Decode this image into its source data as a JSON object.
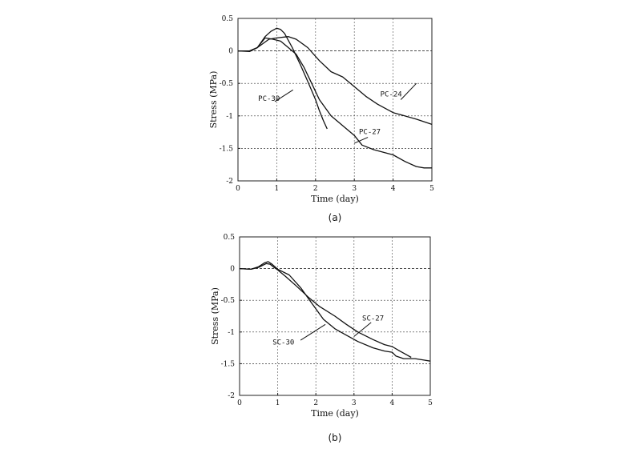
{
  "chart_data": [
    {
      "type": "line",
      "caption": "(a)",
      "xlabel": "Time (day)",
      "ylabel": "Stress (MPa)",
      "xlim": [
        0,
        5
      ],
      "ylim": [
        -2,
        0.5
      ],
      "xticks": [
        "0",
        "1",
        "2",
        "3",
        "4",
        "5"
      ],
      "yticks": [
        "0.5",
        "0",
        "-0.5",
        "-1",
        "-1.5",
        "-2"
      ],
      "grid": true,
      "series": [
        {
          "name": "PC-30",
          "x": [
            0,
            0.3,
            0.5,
            0.7,
            0.85,
            1.0,
            1.1,
            1.2,
            1.4,
            1.6,
            1.8,
            2.0,
            2.1,
            2.2,
            2.3
          ],
          "y": [
            0,
            -0.01,
            0.05,
            0.22,
            0.3,
            0.35,
            0.33,
            0.27,
            0.05,
            -0.2,
            -0.47,
            -0.75,
            -0.92,
            -1.07,
            -1.2
          ]
        },
        {
          "name": "PC-24",
          "x": [
            0,
            0.3,
            0.5,
            0.8,
            1.0,
            1.3,
            1.5,
            1.8,
            2.1,
            2.4,
            2.7,
            3.0,
            3.3,
            3.6,
            4.0,
            4.3,
            4.6,
            5.0
          ],
          "y": [
            0,
            0,
            0.05,
            0.18,
            0.2,
            0.22,
            0.18,
            0.05,
            -0.15,
            -0.32,
            -0.4,
            -0.55,
            -0.7,
            -0.82,
            -0.95,
            -1.0,
            -1.05,
            -1.13
          ]
        },
        {
          "name": "PC-27",
          "x": [
            0,
            0.3,
            0.5,
            0.7,
            0.9,
            1.1,
            1.3,
            1.5,
            1.7,
            1.9,
            2.1,
            2.4,
            2.7,
            3.0,
            3.2,
            3.5,
            4.0,
            4.3,
            4.6,
            4.8,
            5.0
          ],
          "y": [
            0,
            0,
            0.05,
            0.2,
            0.18,
            0.15,
            0.05,
            -0.05,
            -0.25,
            -0.5,
            -0.75,
            -1.0,
            -1.15,
            -1.3,
            -1.45,
            -1.52,
            -1.6,
            -1.7,
            -1.78,
            -1.8,
            -1.8
          ]
        }
      ],
      "labels": [
        {
          "text": "PC-30",
          "x": 0.8,
          "y": -0.77
        },
        {
          "text": "PC-24",
          "x": 3.95,
          "y": -0.7
        },
        {
          "text": "PC-27",
          "x": 3.4,
          "y": -1.28
        }
      ]
    },
    {
      "type": "line",
      "caption": "(b)",
      "xlabel": "Time (day)",
      "ylabel": "Stress (MPa)",
      "xlim": [
        0,
        5
      ],
      "ylim": [
        -2,
        0.5
      ],
      "xticks": [
        "0",
        "1",
        "2",
        "3",
        "4",
        "5"
      ],
      "yticks": [
        "0.5",
        "0",
        "-0.5",
        "-1",
        "-1.5",
        "-2"
      ],
      "grid": true,
      "series": [
        {
          "name": "SC-27",
          "x": [
            0,
            0.3,
            0.5,
            0.7,
            0.8,
            0.9,
            1.0,
            1.2,
            1.5,
            1.8,
            2.1,
            2.5,
            2.8,
            3.1,
            3.5,
            3.8,
            4.0,
            4.2,
            4.5
          ],
          "y": [
            0,
            -0.01,
            0.02,
            0.08,
            0.07,
            0.02,
            -0.02,
            -0.12,
            -0.28,
            -0.45,
            -0.6,
            -0.75,
            -0.88,
            -1.0,
            -1.12,
            -1.2,
            -1.23,
            -1.3,
            -1.4
          ]
        },
        {
          "name": "SC-30",
          "x": [
            0,
            0.3,
            0.5,
            0.65,
            0.75,
            0.85,
            1.0,
            1.3,
            1.6,
            1.9,
            2.2,
            2.5,
            2.8,
            3.1,
            3.5,
            3.8,
            4.0,
            4.1,
            4.3,
            4.6,
            4.8,
            5.0
          ],
          "y": [
            0,
            -0.01,
            0.03,
            0.09,
            0.11,
            0.07,
            -0.01,
            -0.1,
            -0.3,
            -0.55,
            -0.8,
            -0.95,
            -1.05,
            -1.15,
            -1.25,
            -1.3,
            -1.32,
            -1.38,
            -1.42,
            -1.42,
            -1.44,
            -1.46
          ]
        }
      ],
      "labels": [
        {
          "text": "SC-27",
          "x": 3.5,
          "y": -0.82
        },
        {
          "text": "SC-30",
          "x": 1.15,
          "y": -1.2
        }
      ]
    }
  ]
}
